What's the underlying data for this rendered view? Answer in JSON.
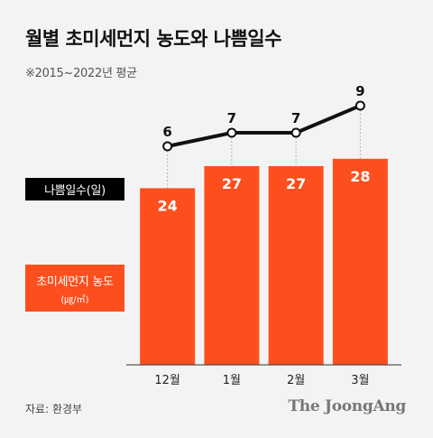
{
  "title": "월별 초미세먼지 농도와 나쁨일수",
  "subtitle": "※2015~2022년 평균",
  "legend": {
    "days": "나쁨일수(일)",
    "pm_line1": "초미세먼지 농도",
    "pm_line2": "(㎍/㎥)"
  },
  "source": "자료: 환경부",
  "brand": "The JoongAng",
  "colors": {
    "bar": "#fd4f1e",
    "line": "#111111",
    "background": "#f3f3f3"
  },
  "chart_data": [
    {
      "type": "bar",
      "categories": [
        "12월",
        "1월",
        "2월",
        "3월"
      ],
      "values": [
        24,
        27,
        27,
        28
      ],
      "ylim": [
        0,
        30
      ]
    },
    {
      "type": "line",
      "categories": [
        "12월",
        "1월",
        "2월",
        "3월"
      ],
      "values": [
        6,
        7,
        7,
        9
      ],
      "ylim": [
        3,
        9
      ]
    }
  ]
}
